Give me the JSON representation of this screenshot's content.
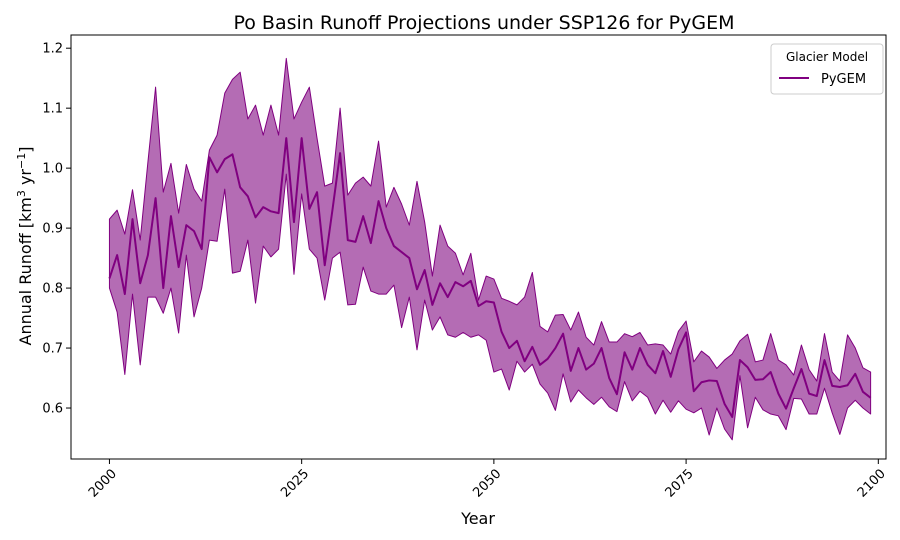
{
  "chart_data": {
    "type": "line",
    "title": "Po Basin Runoff Projections under SSP126 for PyGEM",
    "xlabel": "Year",
    "ylabel": "Annual Runoff [km³ yr⁻¹]",
    "ylabel_parts": {
      "main": "Annual Runoff [km",
      "sup1": "3",
      "mid": " yr",
      "sup2": "−1",
      "end": "]"
    },
    "xlim": [
      1995,
      2101
    ],
    "ylim": [
      0.515,
      1.222
    ],
    "xticks": [
      2000,
      2025,
      2050,
      2075,
      2100
    ],
    "xtick_labels": [
      "2000",
      "2025",
      "2050",
      "2075",
      "2100"
    ],
    "yticks": [
      0.6,
      0.7,
      0.8,
      0.9,
      1.0,
      1.1,
      1.2
    ],
    "ytick_labels": [
      "0.6",
      "0.7",
      "0.8",
      "0.9",
      "1.0",
      "1.1",
      "1.2"
    ],
    "grid": false,
    "legend": {
      "title": "Glacier Model",
      "placement": "top-right",
      "entries": [
        "PyGEM"
      ]
    },
    "colors": {
      "line": "#800080",
      "band": "#b46cb4"
    },
    "series": [
      {
        "name": "PyGEM",
        "x": [
          2000,
          2001,
          2002,
          2003,
          2004,
          2005,
          2006,
          2007,
          2008,
          2009,
          2010,
          2011,
          2012,
          2013,
          2014,
          2015,
          2016,
          2017,
          2018,
          2019,
          2020,
          2021,
          2022,
          2023,
          2024,
          2025,
          2026,
          2027,
          2028,
          2029,
          2030,
          2031,
          2032,
          2033,
          2034,
          2035,
          2036,
          2037,
          2038,
          2039,
          2040,
          2041,
          2042,
          2043,
          2044,
          2045,
          2046,
          2047,
          2048,
          2049,
          2050,
          2051,
          2052,
          2053,
          2054,
          2055,
          2056,
          2057,
          2058,
          2059,
          2060,
          2061,
          2062,
          2063,
          2064,
          2065,
          2066,
          2067,
          2068,
          2069,
          2070,
          2071,
          2072,
          2073,
          2074,
          2075,
          2076,
          2077,
          2078,
          2079,
          2080,
          2081,
          2082,
          2083,
          2084,
          2085,
          2086,
          2087,
          2088,
          2089,
          2090,
          2091,
          2092,
          2093,
          2094,
          2095,
          2096,
          2097,
          2098,
          2099
        ],
        "values": [
          0.816,
          0.855,
          0.79,
          0.915,
          0.808,
          0.855,
          0.95,
          0.8,
          0.92,
          0.835,
          0.905,
          0.895,
          0.865,
          1.018,
          0.993,
          1.015,
          1.023,
          0.968,
          0.953,
          0.918,
          0.935,
          0.928,
          0.925,
          1.05,
          0.91,
          1.05,
          0.932,
          0.96,
          0.838,
          0.93,
          1.025,
          0.88,
          0.877,
          0.92,
          0.875,
          0.945,
          0.9,
          0.87,
          0.86,
          0.85,
          0.798,
          0.83,
          0.772,
          0.808,
          0.785,
          0.81,
          0.803,
          0.812,
          0.77,
          0.778,
          0.776,
          0.727,
          0.7,
          0.712,
          0.678,
          0.702,
          0.672,
          0.682,
          0.7,
          0.724,
          0.662,
          0.7,
          0.664,
          0.674,
          0.7,
          0.65,
          0.623,
          0.693,
          0.664,
          0.7,
          0.672,
          0.658,
          0.695,
          0.652,
          0.698,
          0.726,
          0.628,
          0.643,
          0.646,
          0.645,
          0.607,
          0.585,
          0.68,
          0.668,
          0.647,
          0.648,
          0.66,
          0.624,
          0.599,
          0.633,
          0.665,
          0.624,
          0.62,
          0.68,
          0.637,
          0.635,
          0.638,
          0.657,
          0.627,
          0.617
        ],
        "lower": [
          0.8,
          0.76,
          0.656,
          0.79,
          0.672,
          0.785,
          0.785,
          0.758,
          0.8,
          0.725,
          0.855,
          0.752,
          0.8,
          0.88,
          0.878,
          0.965,
          0.825,
          0.828,
          0.88,
          0.775,
          0.87,
          0.852,
          0.865,
          0.99,
          0.823,
          0.957,
          0.865,
          0.85,
          0.78,
          0.85,
          0.86,
          0.772,
          0.773,
          0.835,
          0.795,
          0.79,
          0.79,
          0.805,
          0.734,
          0.785,
          0.697,
          0.78,
          0.73,
          0.752,
          0.722,
          0.718,
          0.726,
          0.718,
          0.722,
          0.713,
          0.66,
          0.665,
          0.63,
          0.678,
          0.66,
          0.673,
          0.64,
          0.625,
          0.596,
          0.657,
          0.61,
          0.63,
          0.617,
          0.606,
          0.618,
          0.602,
          0.594,
          0.644,
          0.612,
          0.628,
          0.618,
          0.59,
          0.613,
          0.593,
          0.612,
          0.598,
          0.592,
          0.6,
          0.555,
          0.6,
          0.565,
          0.547,
          0.654,
          0.567,
          0.618,
          0.597,
          0.59,
          0.587,
          0.564,
          0.616,
          0.615,
          0.59,
          0.59,
          0.633,
          0.592,
          0.556,
          0.6,
          0.613,
          0.6,
          0.59
        ],
        "upper": [
          0.915,
          0.93,
          0.89,
          0.964,
          0.88,
          1.01,
          1.135,
          0.96,
          1.008,
          0.925,
          1.006,
          0.965,
          0.945,
          1.03,
          1.055,
          1.125,
          1.148,
          1.16,
          1.082,
          1.105,
          1.055,
          1.105,
          1.055,
          1.183,
          1.082,
          1.11,
          1.135,
          1.05,
          0.97,
          0.975,
          1.1,
          0.955,
          0.975,
          0.985,
          0.97,
          1.045,
          0.935,
          0.968,
          0.94,
          0.905,
          0.978,
          0.91,
          0.82,
          0.905,
          0.87,
          0.858,
          0.822,
          0.858,
          0.78,
          0.82,
          0.815,
          0.783,
          0.778,
          0.772,
          0.785,
          0.826,
          0.736,
          0.727,
          0.755,
          0.756,
          0.73,
          0.76,
          0.718,
          0.705,
          0.744,
          0.71,
          0.71,
          0.724,
          0.719,
          0.726,
          0.705,
          0.707,
          0.705,
          0.69,
          0.728,
          0.745,
          0.677,
          0.695,
          0.685,
          0.666,
          0.68,
          0.69,
          0.712,
          0.723,
          0.677,
          0.68,
          0.724,
          0.68,
          0.672,
          0.655,
          0.705,
          0.664,
          0.645,
          0.724,
          0.66,
          0.645,
          0.722,
          0.7,
          0.667,
          0.66
        ]
      }
    ]
  }
}
